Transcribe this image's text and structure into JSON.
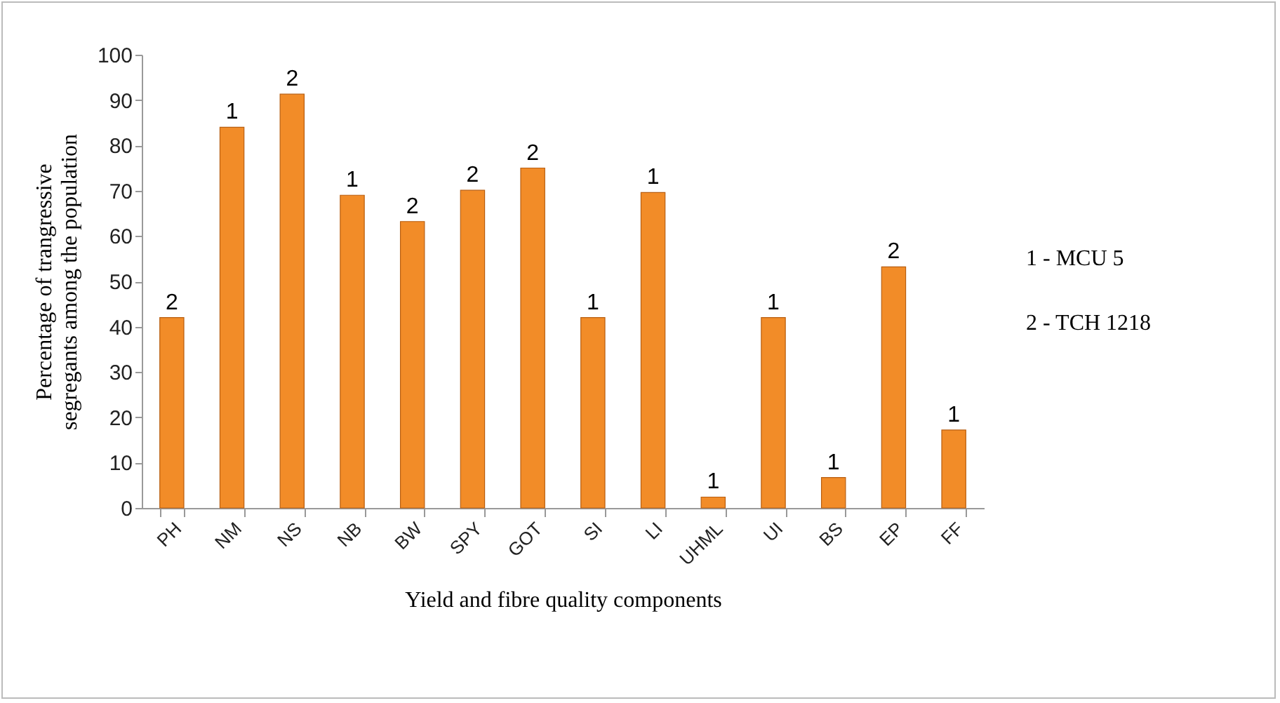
{
  "chart_data": {
    "type": "bar",
    "xlabel": "Yield and fibre quality components",
    "ylabel": "Percentage of trangressive segregants among the population",
    "categories": [
      "PH",
      "NM",
      "NS",
      "NB",
      "BW",
      "SPY",
      "GOT",
      "SI",
      "LI",
      "UHML",
      "UI",
      "BS",
      "EP",
      "FF"
    ],
    "values": [
      42,
      84,
      91.3,
      69,
      63.2,
      70.1,
      75,
      42,
      69.6,
      2.4,
      42,
      6.7,
      53.2,
      17.2
    ],
    "color": "#f28c28",
    "grid": false,
    "ylim": [
      0,
      100
    ],
    "yticks": [
      0,
      10,
      20,
      30,
      40,
      50,
      60,
      70,
      80,
      90,
      100
    ],
    "annotations": [
      {
        "text": "2",
        "x": "PH",
        "y": 42
      },
      {
        "text": "1",
        "x": "NM",
        "y": 84
      },
      {
        "text": "2",
        "x": "NS",
        "y": 91.3
      },
      {
        "text": "1",
        "x": "NB",
        "y": 69
      },
      {
        "text": "2",
        "x": "BW",
        "y": 63.2
      },
      {
        "text": "2",
        "x": "SPY",
        "y": 70.1
      },
      {
        "text": "2",
        "x": "GOT",
        "y": 75
      },
      {
        "text": "1",
        "x": "SI",
        "y": 42
      },
      {
        "text": "1",
        "x": "LI",
        "y": 69.6
      },
      {
        "text": "1",
        "x": "UHML",
        "y": 2.4
      },
      {
        "text": "1",
        "x": "UI",
        "y": 42
      },
      {
        "text": "1",
        "x": "BS",
        "y": 6.7
      },
      {
        "text": "2",
        "x": "EP",
        "y": 53.2
      },
      {
        "text": "1",
        "x": "FF",
        "y": 17.2
      },
      "1 - MCU 5",
      "2 - TCH 1218"
    ]
  }
}
